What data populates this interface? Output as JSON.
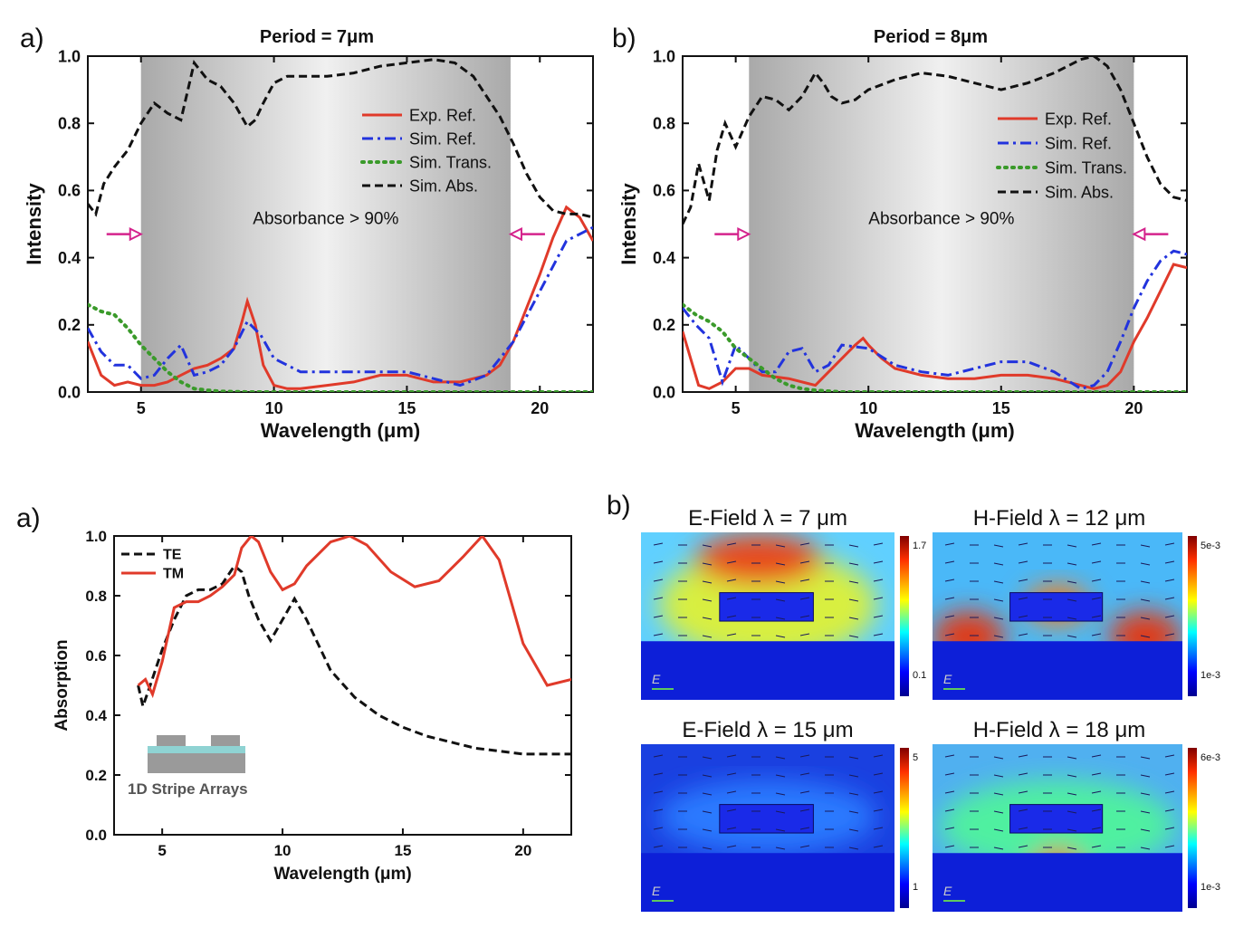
{
  "chart_data": [
    {
      "type": "line",
      "panel_label": "a)",
      "title": "Period = 7μm",
      "xlabel": "Wavelength (μm)",
      "ylabel": "Intensity",
      "xlim": [
        3,
        22
      ],
      "ylim": [
        0,
        1.0
      ],
      "xticks": [
        5,
        10,
        15,
        20
      ],
      "yticks": [
        0.0,
        0.2,
        0.4,
        0.6,
        0.8,
        1.0
      ],
      "shaded_band": [
        5,
        18.9
      ],
      "annotation": "Absorbance > 90%",
      "arrows": [
        {
          "x": 5,
          "y": 0.47,
          "dir": "right"
        },
        {
          "x": 18.9,
          "y": 0.47,
          "dir": "left"
        }
      ],
      "legend_position": "upper-right",
      "series": [
        {
          "name": "Exp. Ref.",
          "color": "#e03a2a",
          "dash": "solid",
          "x": [
            3,
            3.5,
            4,
            4.5,
            5,
            5.5,
            6,
            6.5,
            7,
            7.5,
            8,
            8.5,
            8.8,
            9,
            9.3,
            9.6,
            10,
            10.5,
            11,
            12,
            13,
            14,
            15,
            16,
            17,
            18,
            18.5,
            19,
            19.5,
            20,
            20.5,
            21,
            21.5,
            22
          ],
          "y": [
            0.15,
            0.05,
            0.02,
            0.03,
            0.02,
            0.02,
            0.03,
            0.05,
            0.07,
            0.08,
            0.1,
            0.13,
            0.21,
            0.27,
            0.2,
            0.08,
            0.02,
            0.01,
            0.01,
            0.02,
            0.03,
            0.05,
            0.05,
            0.03,
            0.03,
            0.05,
            0.08,
            0.15,
            0.25,
            0.35,
            0.46,
            0.55,
            0.52,
            0.45
          ]
        },
        {
          "name": "Sim. Ref.",
          "color": "#2233dd",
          "dash": "dashdot",
          "x": [
            3,
            3.5,
            4,
            4.5,
            5,
            5.5,
            6,
            6.5,
            7,
            7.5,
            8,
            8.5,
            9,
            9.5,
            10,
            11,
            12,
            13,
            14,
            15,
            16,
            17,
            18,
            19,
            20,
            21,
            22
          ],
          "y": [
            0.19,
            0.12,
            0.08,
            0.08,
            0.04,
            0.05,
            0.1,
            0.14,
            0.05,
            0.06,
            0.08,
            0.13,
            0.21,
            0.17,
            0.1,
            0.06,
            0.06,
            0.06,
            0.06,
            0.06,
            0.04,
            0.02,
            0.05,
            0.15,
            0.3,
            0.45,
            0.49
          ]
        },
        {
          "name": "Sim. Trans.",
          "color": "#3a9a2a",
          "dash": "dotted",
          "x": [
            3,
            3.5,
            4,
            4.5,
            5,
            5.5,
            6,
            6.5,
            7,
            7.5,
            8,
            9,
            10,
            12,
            15,
            18,
            20,
            22
          ],
          "y": [
            0.26,
            0.24,
            0.23,
            0.19,
            0.14,
            0.1,
            0.06,
            0.03,
            0.01,
            0.005,
            0.002,
            0,
            0,
            0,
            0,
            0,
            0,
            0
          ],
          "dotted_tail_to": 22
        },
        {
          "name": "Sim. Abs.",
          "color": "#111111",
          "dash": "dashed",
          "x": [
            3,
            3.3,
            3.6,
            4,
            4.5,
            5,
            5.5,
            6,
            6.5,
            7,
            7.5,
            8,
            8.5,
            9,
            9.3,
            9.6,
            10,
            10.5,
            11,
            12,
            13,
            14,
            15,
            16,
            16.8,
            17.5,
            18.5,
            19,
            19.5,
            20,
            20.5,
            21,
            21.5,
            22
          ],
          "y": [
            0.56,
            0.53,
            0.62,
            0.67,
            0.72,
            0.8,
            0.86,
            0.83,
            0.81,
            0.98,
            0.93,
            0.91,
            0.86,
            0.79,
            0.81,
            0.86,
            0.92,
            0.94,
            0.94,
            0.94,
            0.95,
            0.97,
            0.98,
            0.99,
            0.98,
            0.94,
            0.82,
            0.74,
            0.65,
            0.58,
            0.54,
            0.53,
            0.53,
            0.52
          ]
        }
      ]
    },
    {
      "type": "line",
      "panel_label": "b)",
      "title": "Period = 8μm",
      "xlabel": "Wavelength (μm)",
      "ylabel": "Intensity",
      "xlim": [
        3,
        22
      ],
      "ylim": [
        0,
        1.0
      ],
      "xticks": [
        5,
        10,
        15,
        20
      ],
      "yticks": [
        0.0,
        0.2,
        0.4,
        0.6,
        0.8,
        1.0
      ],
      "shaded_band": [
        5.5,
        20
      ],
      "annotation": "Absorbance > 90%",
      "arrows": [
        {
          "x": 5.5,
          "y": 0.47,
          "dir": "right"
        },
        {
          "x": 20,
          "y": 0.47,
          "dir": "left"
        }
      ],
      "legend_position": "upper-right",
      "series": [
        {
          "name": "Exp. Ref.",
          "color": "#e03a2a",
          "dash": "solid",
          "x": [
            3,
            3.3,
            3.6,
            4,
            4.5,
            5,
            5.5,
            6,
            7,
            8,
            9,
            9.5,
            9.8,
            10,
            10.5,
            11,
            12,
            13,
            14,
            15,
            16,
            17,
            18,
            18.5,
            19,
            19.5,
            20,
            20.5,
            21,
            21.5,
            22
          ],
          "y": [
            0.18,
            0.1,
            0.02,
            0.01,
            0.03,
            0.07,
            0.07,
            0.05,
            0.04,
            0.02,
            0.1,
            0.14,
            0.16,
            0.14,
            0.1,
            0.07,
            0.05,
            0.04,
            0.04,
            0.05,
            0.05,
            0.04,
            0.02,
            0.01,
            0.02,
            0.06,
            0.15,
            0.22,
            0.3,
            0.38,
            0.37
          ]
        },
        {
          "name": "Sim. Ref.",
          "color": "#2233dd",
          "dash": "dashdot",
          "x": [
            3,
            3.5,
            4,
            4.5,
            5,
            5.5,
            6,
            6.5,
            7,
            7.5,
            8,
            8.5,
            9,
            10,
            11,
            12,
            13,
            14,
            15,
            16,
            17,
            18,
            18.5,
            19,
            19.5,
            20,
            20.5,
            21,
            21.5,
            22
          ],
          "y": [
            0.25,
            0.2,
            0.16,
            0.03,
            0.14,
            0.1,
            0.06,
            0.06,
            0.12,
            0.13,
            0.06,
            0.08,
            0.14,
            0.13,
            0.08,
            0.06,
            0.05,
            0.07,
            0.09,
            0.09,
            0.06,
            0.01,
            0.02,
            0.06,
            0.15,
            0.25,
            0.33,
            0.39,
            0.42,
            0.41
          ]
        },
        {
          "name": "Sim. Trans.",
          "color": "#3a9a2a",
          "dash": "dotted",
          "x": [
            3,
            3.5,
            4,
            4.5,
            5,
            5.5,
            6,
            6.5,
            7,
            7.5,
            8,
            9,
            10,
            12,
            15,
            18,
            20,
            22
          ],
          "y": [
            0.26,
            0.23,
            0.21,
            0.18,
            0.13,
            0.1,
            0.07,
            0.04,
            0.02,
            0.01,
            0.005,
            0,
            0,
            0,
            0,
            0,
            0,
            0
          ]
        },
        {
          "name": "Sim. Abs.",
          "color": "#111111",
          "dash": "dashed",
          "x": [
            3,
            3.3,
            3.6,
            4,
            4.3,
            4.6,
            5,
            5.5,
            6,
            6.5,
            7,
            7.5,
            8,
            8.3,
            8.6,
            9,
            9.5,
            10,
            11,
            12,
            13,
            14,
            15,
            16,
            17,
            17.5,
            18,
            18.5,
            19,
            19.5,
            20,
            20.5,
            21,
            21.5,
            22
          ],
          "y": [
            0.5,
            0.55,
            0.68,
            0.57,
            0.72,
            0.8,
            0.73,
            0.82,
            0.88,
            0.87,
            0.84,
            0.88,
            0.95,
            0.92,
            0.88,
            0.86,
            0.87,
            0.9,
            0.93,
            0.95,
            0.94,
            0.92,
            0.9,
            0.92,
            0.95,
            0.97,
            0.99,
            1.0,
            0.97,
            0.9,
            0.8,
            0.7,
            0.62,
            0.58,
            0.57
          ]
        }
      ]
    },
    {
      "type": "line",
      "panel_label": "a)",
      "title": "",
      "xlabel": "Wavelength (μm)",
      "ylabel": "Absorption",
      "xlim": [
        3,
        22
      ],
      "ylim": [
        0,
        1.0
      ],
      "xticks": [
        5,
        10,
        15,
        20
      ],
      "yticks": [
        0.0,
        0.2,
        0.4,
        0.6,
        0.8,
        1.0
      ],
      "legend_position": "upper-left",
      "inset_label": "1D Stripe Arrays",
      "series": [
        {
          "name": "TE",
          "color": "#111111",
          "dash": "dashed",
          "x": [
            4,
            4.2,
            4.5,
            5,
            5.5,
            6,
            6.5,
            7,
            7.5,
            8,
            8.3,
            8.6,
            9,
            9.5,
            10,
            10.5,
            11,
            12,
            13,
            14,
            15,
            16,
            17,
            18,
            19,
            20,
            21,
            22
          ],
          "y": [
            0.5,
            0.43,
            0.5,
            0.62,
            0.72,
            0.8,
            0.82,
            0.82,
            0.84,
            0.9,
            0.88,
            0.8,
            0.72,
            0.65,
            0.72,
            0.79,
            0.72,
            0.55,
            0.46,
            0.4,
            0.36,
            0.33,
            0.31,
            0.29,
            0.28,
            0.27,
            0.27,
            0.27
          ]
        },
        {
          "name": "TM",
          "color": "#e03a2a",
          "dash": "solid",
          "x": [
            4,
            4.3,
            4.6,
            5,
            5.5,
            6,
            6.5,
            7,
            7.5,
            8,
            8.3,
            8.7,
            9,
            9.5,
            10,
            10.5,
            11,
            12,
            12.8,
            13.5,
            14.5,
            15.5,
            16.5,
            17.5,
            18.3,
            19,
            19.5,
            20,
            21,
            22
          ],
          "y": [
            0.5,
            0.52,
            0.47,
            0.58,
            0.76,
            0.78,
            0.78,
            0.8,
            0.83,
            0.87,
            0.96,
            1.0,
            0.98,
            0.88,
            0.82,
            0.84,
            0.9,
            0.98,
            1.0,
            0.97,
            0.88,
            0.83,
            0.85,
            0.93,
            1.0,
            0.92,
            0.78,
            0.64,
            0.5,
            0.52
          ]
        }
      ]
    }
  ],
  "field_maps": {
    "panel_label": "b)",
    "maps": [
      {
        "title": "E-Field λ = 7 μm",
        "cbar_top": "1.7",
        "cbar_bottom": "0.1",
        "vector_label": "E"
      },
      {
        "title": "H-Field λ = 12 μm",
        "cbar_top": "5e-3",
        "cbar_bottom": "1e-3",
        "vector_label": "E"
      },
      {
        "title": "E-Field λ = 15 μm",
        "cbar_top": "5",
        "cbar_bottom": "1",
        "vector_label": "E"
      },
      {
        "title": "H-Field λ = 18 μm",
        "cbar_top": "6e-3",
        "cbar_bottom": "1e-3",
        "vector_label": "E"
      }
    ]
  }
}
